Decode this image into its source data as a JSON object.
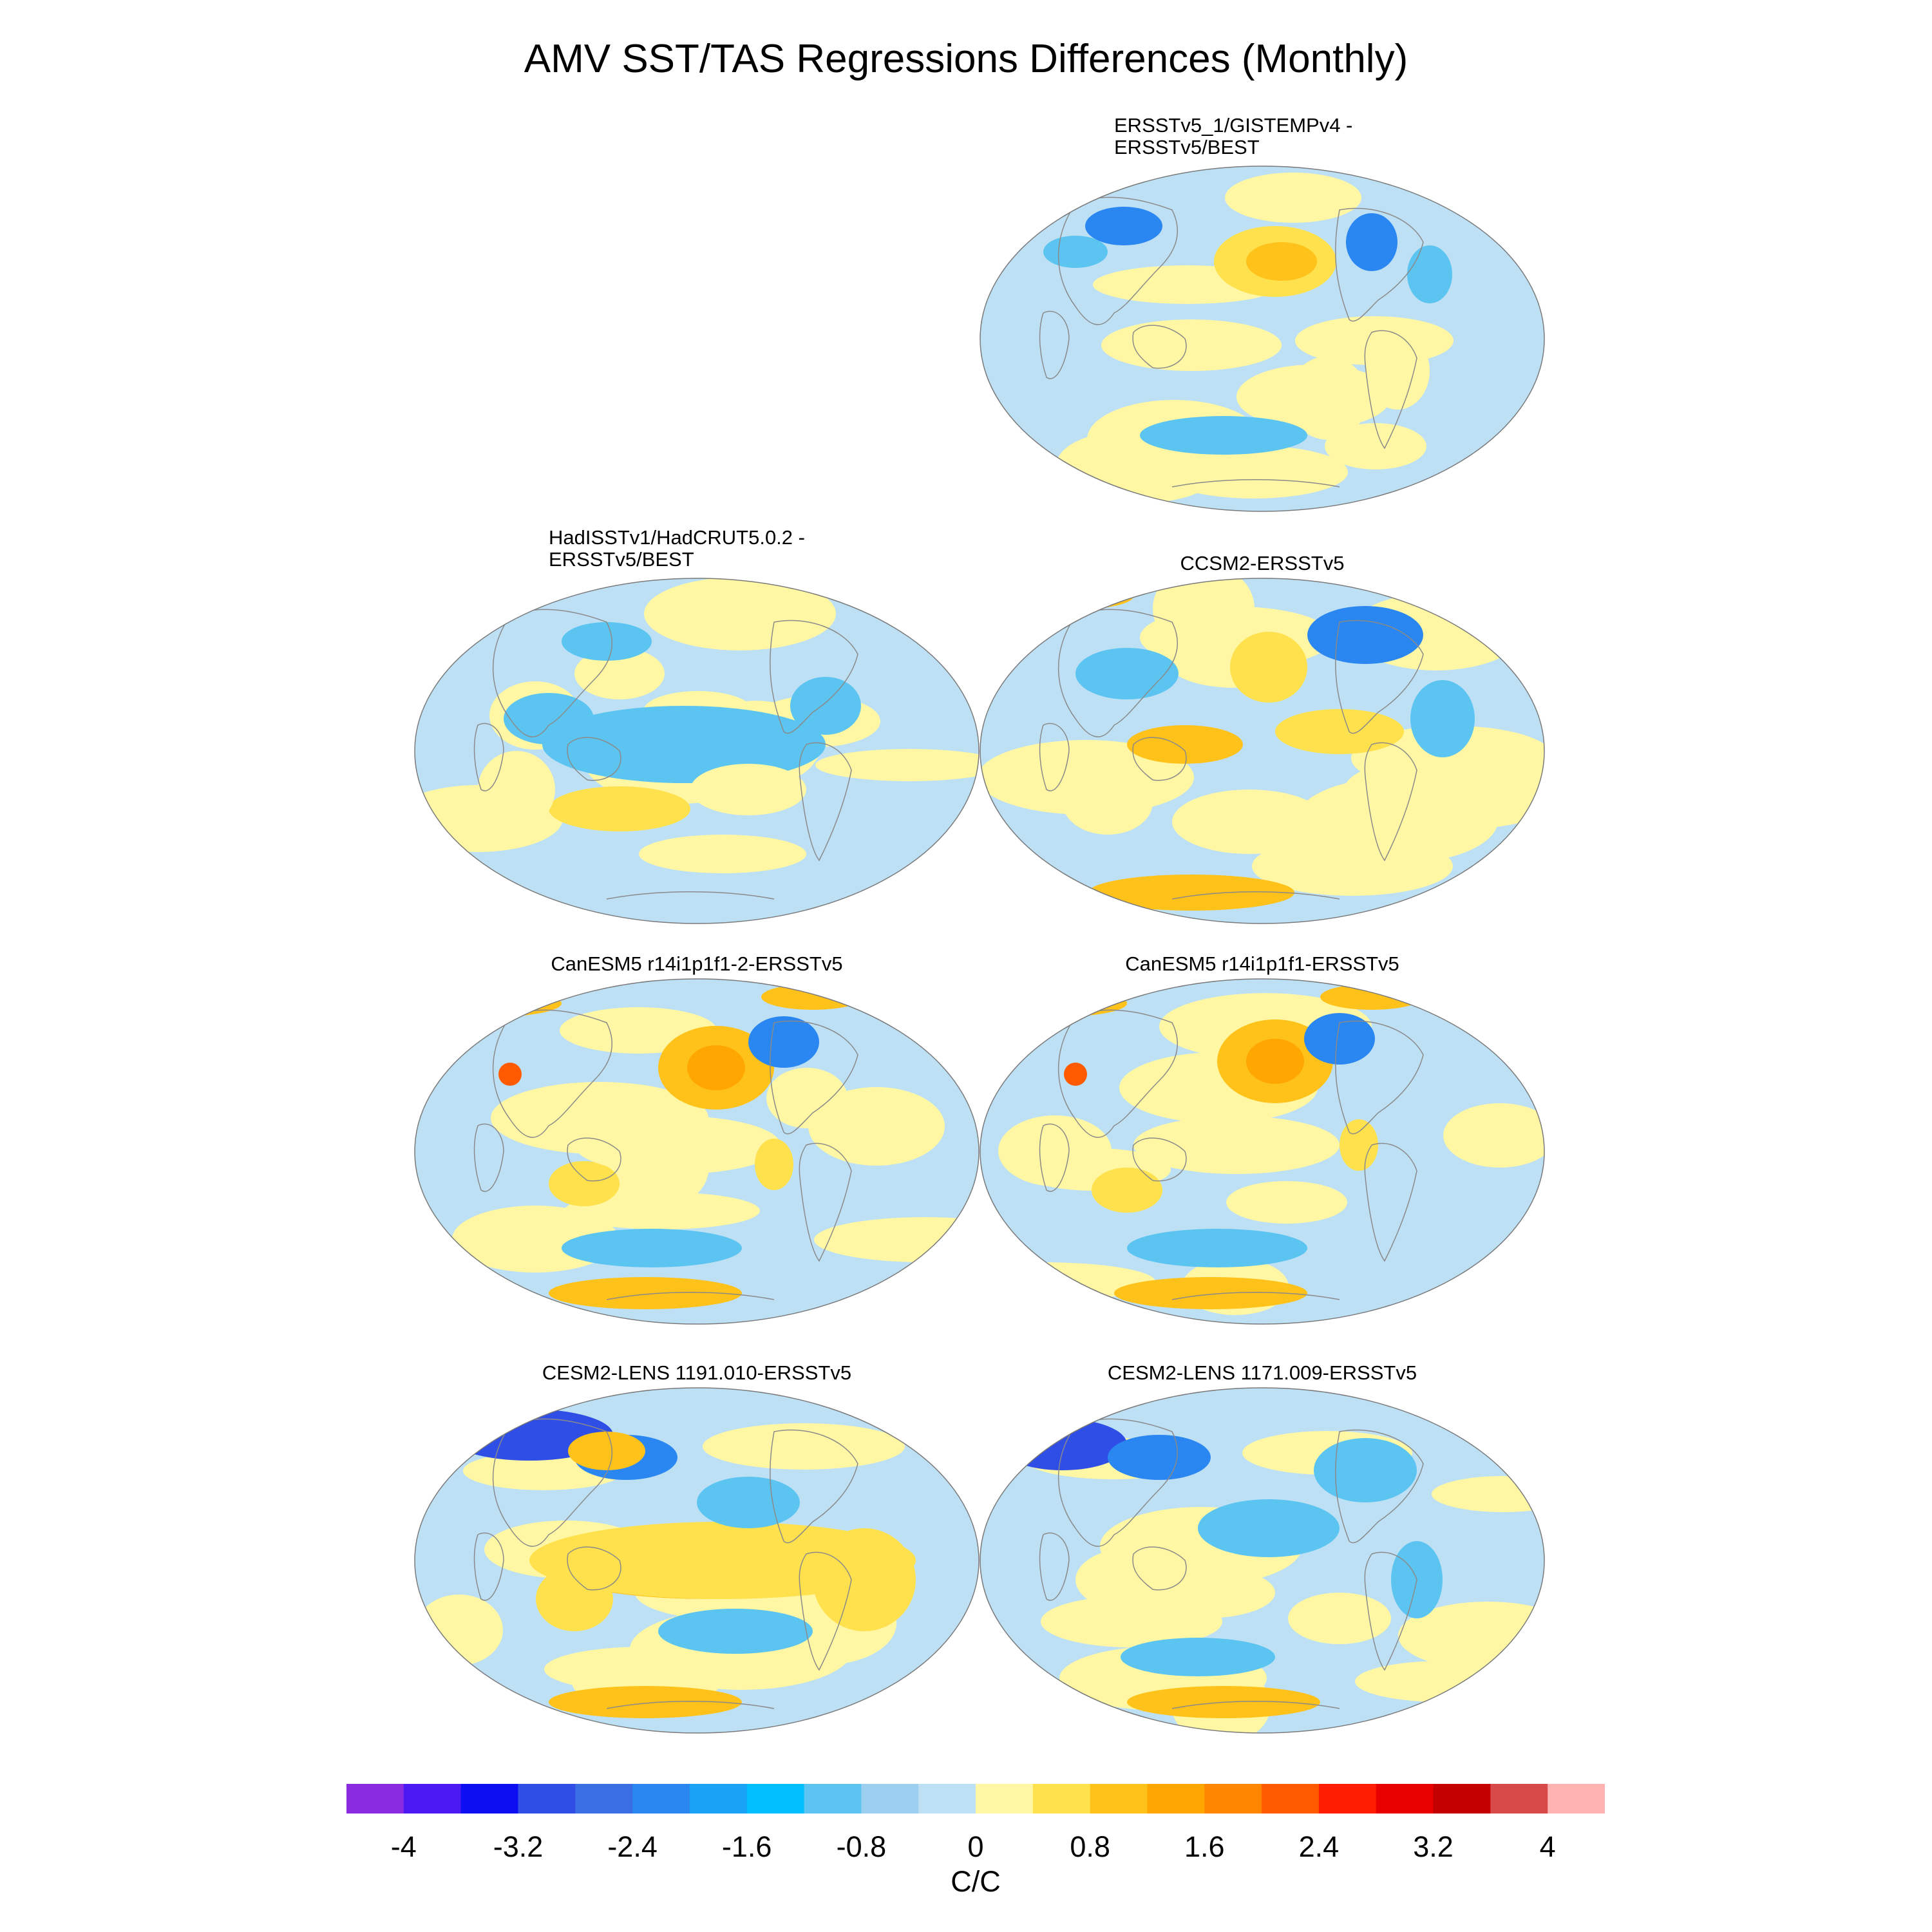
{
  "chart_data": {
    "type": "heatmap",
    "title": "AMV SST/TAS Regressions Differences (Monthly)",
    "projection": "Robinson (global, Pacific-centered)",
    "panels": [
      {
        "title_lines": [
          "ERSSTv5_1/GISTEMPv4 -",
          "ERSSTv5/BEST"
        ],
        "grid_position": "row 1, right"
      },
      {
        "title_lines": [
          "HadISSTv1/HadCRUT5.0.2 -",
          "ERSSTv5/BEST"
        ],
        "grid_position": "row 2, left"
      },
      {
        "title_lines": [
          "CCSM2-ERSSTv5"
        ],
        "grid_position": "row 2, right"
      },
      {
        "title_lines": [
          "CanESM5 r14i1p1f1-2-ERSSTv5"
        ],
        "grid_position": "row 3, left"
      },
      {
        "title_lines": [
          "CanESM5 r14i1p1f1-ERSSTv5"
        ],
        "grid_position": "row 3, right"
      },
      {
        "title_lines": [
          "CESM2-LENS 1191.010-ERSSTv5"
        ],
        "grid_position": "row 4, left"
      },
      {
        "title_lines": [
          "CESM2-LENS 1171.009-ERSSTv5"
        ],
        "grid_position": "row 4, right"
      }
    ],
    "colorbar": {
      "label": "C/C",
      "range": [
        -4.4,
        4.4
      ],
      "step": 0.4,
      "tick_labels": [
        "-4",
        "-3.2",
        "-2.4",
        "-1.6",
        "-0.8",
        "0",
        "0.8",
        "1.6",
        "2.4",
        "3.2",
        "4"
      ],
      "tick_values": [
        -4,
        -3.2,
        -2.4,
        -1.6,
        -0.8,
        0,
        0.8,
        1.6,
        2.4,
        3.2,
        4
      ],
      "colors": [
        "#8a2be2",
        "#4b19f2",
        "#0d0df2",
        "#2e4ee6",
        "#3a6fe3",
        "#2a86f0",
        "#1aa3f5",
        "#00bfff",
        "#5cc4f0",
        "#9ccfef",
        "#bde0f5",
        "#fff7a3",
        "#ffe14d",
        "#ffc21a",
        "#ffa600",
        "#ff8600",
        "#ff5a00",
        "#ff1e00",
        "#e60000",
        "#c40000",
        "#d84a4a",
        "#ffb3b3"
      ]
    }
  }
}
